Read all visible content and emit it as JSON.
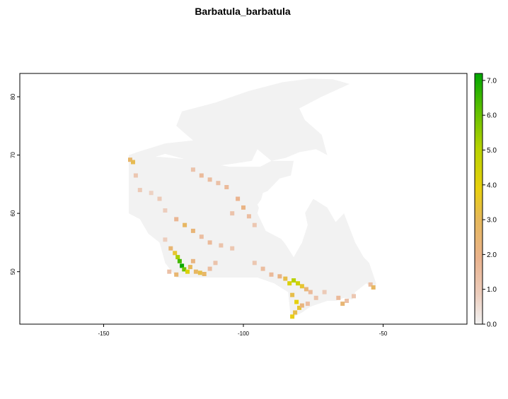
{
  "title": "Barbatula_barbatula",
  "chart_data": {
    "type": "heatmap",
    "title": "Barbatula_barbatula",
    "xlim": [
      -180,
      -20
    ],
    "ylim": [
      41,
      84
    ],
    "x_ticks": [
      {
        "value": -150,
        "label": "-150"
      },
      {
        "value": -100,
        "label": "-100"
      },
      {
        "value": -50,
        "label": "-50"
      }
    ],
    "y_ticks": [
      {
        "value": 50,
        "label": "50"
      },
      {
        "value": 60,
        "label": "60"
      },
      {
        "value": 70,
        "label": "70"
      },
      {
        "value": 80,
        "label": "80"
      }
    ],
    "legend": {
      "placement": "right",
      "min": 0,
      "max": 7.2,
      "ticks": [
        {
          "value": 0,
          "label": "0.0"
        },
        {
          "value": 1,
          "label": "1.0"
        },
        {
          "value": 2,
          "label": "2.0"
        },
        {
          "value": 3,
          "label": "3.0"
        },
        {
          "value": 4,
          "label": "4.0"
        },
        {
          "value": 5,
          "label": "5.0"
        },
        {
          "value": 6,
          "label": "6.0"
        },
        {
          "value": 7,
          "label": "7.0"
        }
      ],
      "colors": [
        "#f2f2f2",
        "#eab38e",
        "#e8d00e",
        "#80c800",
        "#00a600"
      ]
    },
    "colors": {
      "background": "#f2f2f2",
      "low": "#eab38e",
      "mid": "#e8d00e",
      "high": "#80c800",
      "max": "#00a600"
    },
    "land_mask": [
      [
        -141,
        69.6
      ],
      [
        -136,
        69
      ],
      [
        -128,
        70.2
      ],
      [
        -120,
        69.2
      ],
      [
        -112,
        68
      ],
      [
        -104,
        68.5
      ],
      [
        -97,
        69
      ],
      [
        -95,
        71
      ],
      [
        -90,
        69
      ],
      [
        -85,
        69.5
      ],
      [
        -80,
        70.5
      ],
      [
        -74,
        71
      ],
      [
        -70,
        70
      ],
      [
        -72,
        73.5
      ],
      [
        -78,
        76
      ],
      [
        -80,
        78
      ],
      [
        -72,
        80
      ],
      [
        -62,
        82.2
      ],
      [
        -68,
        83
      ],
      [
        -76,
        83.1
      ],
      [
        -86,
        82.5
      ],
      [
        -98,
        81
      ],
      [
        -110,
        79
      ],
      [
        -122,
        77.5
      ],
      [
        -124,
        75
      ],
      [
        -118,
        72.5
      ],
      [
        -128,
        72
      ],
      [
        -138,
        70.5
      ],
      [
        -141,
        70
      ],
      [
        -141,
        60
      ],
      [
        -137,
        59
      ],
      [
        -134,
        56.5
      ],
      [
        -130,
        55
      ],
      [
        -128,
        51.5
      ],
      [
        -124,
        49
      ],
      [
        -95,
        49
      ],
      [
        -89,
        48
      ],
      [
        -84,
        46.5
      ],
      [
        -83,
        42
      ],
      [
        -79,
        43
      ],
      [
        -76,
        44
      ],
      [
        -70,
        45
      ],
      [
        -67,
        45
      ],
      [
        -64,
        45.5
      ],
      [
        -61,
        45.2
      ],
      [
        -60,
        46.5
      ],
      [
        -56,
        48
      ],
      [
        -53,
        47
      ],
      [
        -52.5,
        48
      ],
      [
        -55,
        51.5
      ],
      [
        -57,
        52.5
      ],
      [
        -60,
        55
      ],
      [
        -62,
        57.5
      ],
      [
        -64,
        60
      ],
      [
        -67,
        58.5
      ],
      [
        -70,
        61
      ],
      [
        -75,
        62.5
      ],
      [
        -78,
        60
      ],
      [
        -79,
        55
      ],
      [
        -82,
        53
      ],
      [
        -88,
        56.5
      ],
      [
        -93,
        59.5
      ],
      [
        -95,
        61.5
      ],
      [
        -92,
        63.5
      ],
      [
        -87,
        66
      ],
      [
        -83,
        66.5
      ],
      [
        -82,
        69
      ],
      [
        -90,
        69
      ],
      [
        -94,
        68
      ],
      [
        -105,
        68
      ],
      [
        -120,
        69.3
      ],
      [
        -130,
        69.7
      ],
      [
        -141,
        69.6
      ]
    ],
    "hudson_bay": [
      [
        -95,
        60
      ],
      [
        -93,
        63.5
      ],
      [
        -88,
        64.5
      ],
      [
        -84,
        63.5
      ],
      [
        -79,
        62.5
      ],
      [
        -77,
        58
      ],
      [
        -79,
        55
      ],
      [
        -82,
        52.5
      ],
      [
        -86,
        55.5
      ],
      [
        -92,
        57
      ],
      [
        -95,
        60
      ]
    ],
    "suitability_cells": [
      {
        "lon": -140.5,
        "lat": 69.2,
        "v": 2.6
      },
      {
        "lon": -139.5,
        "lat": 68.8,
        "v": 3.1
      },
      {
        "lon": -138.5,
        "lat": 66.5,
        "v": 1.2
      },
      {
        "lon": -137.0,
        "lat": 64.0,
        "v": 1.1
      },
      {
        "lon": -133.0,
        "lat": 63.5,
        "v": 0.9
      },
      {
        "lon": -130.0,
        "lat": 62.5,
        "v": 1.1
      },
      {
        "lon": -118.0,
        "lat": 67.5,
        "v": 1.3
      },
      {
        "lon": -115.0,
        "lat": 66.5,
        "v": 1.6
      },
      {
        "lon": -112.0,
        "lat": 65.8,
        "v": 1.5
      },
      {
        "lon": -109.0,
        "lat": 65.2,
        "v": 1.4
      },
      {
        "lon": -106.0,
        "lat": 64.5,
        "v": 1.6
      },
      {
        "lon": -102.0,
        "lat": 62.5,
        "v": 1.8
      },
      {
        "lon": -100.0,
        "lat": 61.0,
        "v": 2.0
      },
      {
        "lon": -98.0,
        "lat": 59.5,
        "v": 1.5
      },
      {
        "lon": -96.0,
        "lat": 58.0,
        "v": 1.2
      },
      {
        "lon": -104.0,
        "lat": 60.0,
        "v": 1.3
      },
      {
        "lon": -128.0,
        "lat": 60.5,
        "v": 1.0
      },
      {
        "lon": -124.0,
        "lat": 59.0,
        "v": 1.7
      },
      {
        "lon": -121.0,
        "lat": 58.0,
        "v": 2.8
      },
      {
        "lon": -118.0,
        "lat": 57.0,
        "v": 2.3
      },
      {
        "lon": -115.0,
        "lat": 56.0,
        "v": 1.5
      },
      {
        "lon": -112.0,
        "lat": 55.0,
        "v": 1.6
      },
      {
        "lon": -108.0,
        "lat": 54.5,
        "v": 1.3
      },
      {
        "lon": -104.0,
        "lat": 54.0,
        "v": 1.2
      },
      {
        "lon": -128.0,
        "lat": 55.5,
        "v": 1.0
      },
      {
        "lon": -126.0,
        "lat": 54.0,
        "v": 2.4
      },
      {
        "lon": -124.5,
        "lat": 53.2,
        "v": 3.5
      },
      {
        "lon": -123.5,
        "lat": 52.5,
        "v": 5.2
      },
      {
        "lon": -122.8,
        "lat": 51.8,
        "v": 6.5
      },
      {
        "lon": -122.0,
        "lat": 51.0,
        "v": 7.1
      },
      {
        "lon": -121.2,
        "lat": 50.4,
        "v": 6.0
      },
      {
        "lon": -120.0,
        "lat": 50.0,
        "v": 4.2
      },
      {
        "lon": -119.0,
        "lat": 50.8,
        "v": 3.0
      },
      {
        "lon": -118.0,
        "lat": 51.8,
        "v": 2.1
      },
      {
        "lon": -117.0,
        "lat": 50.0,
        "v": 2.8
      },
      {
        "lon": -115.5,
        "lat": 49.8,
        "v": 3.2
      },
      {
        "lon": -114.0,
        "lat": 49.6,
        "v": 2.7
      },
      {
        "lon": -112.0,
        "lat": 50.5,
        "v": 1.5
      },
      {
        "lon": -110.0,
        "lat": 51.5,
        "v": 1.3
      },
      {
        "lon": -126.5,
        "lat": 50.0,
        "v": 1.4
      },
      {
        "lon": -124.0,
        "lat": 49.5,
        "v": 2.5
      },
      {
        "lon": -96.0,
        "lat": 51.5,
        "v": 1.2
      },
      {
        "lon": -93.0,
        "lat": 50.5,
        "v": 1.5
      },
      {
        "lon": -90.0,
        "lat": 49.5,
        "v": 1.6
      },
      {
        "lon": -87.0,
        "lat": 49.2,
        "v": 2.0
      },
      {
        "lon": -85.0,
        "lat": 48.8,
        "v": 3.2
      },
      {
        "lon": -83.5,
        "lat": 48.0,
        "v": 4.2
      },
      {
        "lon": -82.0,
        "lat": 48.5,
        "v": 5.0
      },
      {
        "lon": -80.5,
        "lat": 48.0,
        "v": 4.5
      },
      {
        "lon": -79.0,
        "lat": 47.5,
        "v": 3.5
      },
      {
        "lon": -77.5,
        "lat": 47.0,
        "v": 2.3
      },
      {
        "lon": -76.0,
        "lat": 46.5,
        "v": 1.6
      },
      {
        "lon": -82.5,
        "lat": 46.0,
        "v": 3.2
      },
      {
        "lon": -81.0,
        "lat": 44.8,
        "v": 4.0
      },
      {
        "lon": -80.0,
        "lat": 43.8,
        "v": 3.5
      },
      {
        "lon": -81.5,
        "lat": 43.0,
        "v": 3.2
      },
      {
        "lon": -82.5,
        "lat": 42.3,
        "v": 3.8
      },
      {
        "lon": -79.0,
        "lat": 44.2,
        "v": 2.2
      },
      {
        "lon": -77.0,
        "lat": 44.5,
        "v": 1.5
      },
      {
        "lon": -74.0,
        "lat": 45.5,
        "v": 1.3
      },
      {
        "lon": -71.0,
        "lat": 46.5,
        "v": 1.1
      },
      {
        "lon": -66.0,
        "lat": 45.5,
        "v": 1.6
      },
      {
        "lon": -64.5,
        "lat": 44.5,
        "v": 2.4
      },
      {
        "lon": -63.0,
        "lat": 45.0,
        "v": 1.4
      },
      {
        "lon": -60.5,
        "lat": 45.8,
        "v": 1.2
      },
      {
        "lon": -54.5,
        "lat": 47.8,
        "v": 1.5
      },
      {
        "lon": -53.5,
        "lat": 47.3,
        "v": 2.8
      }
    ]
  }
}
